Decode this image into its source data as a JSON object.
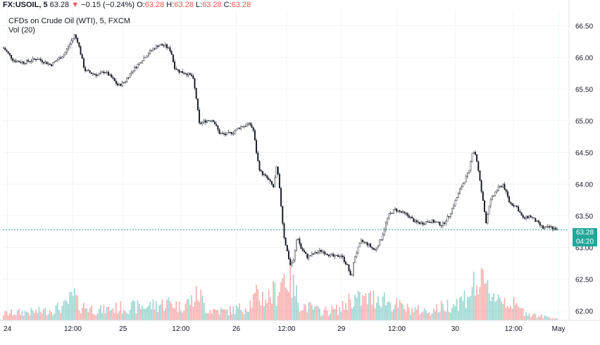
{
  "header": {
    "symbol": "FX:USOIL, 5",
    "price": "63.28",
    "change_icon": "triangle-down-icon",
    "change": "−0.15 (−0.24%)",
    "o_label": "O:",
    "o_value": "63.28",
    "h_label": "H:",
    "h_value": "63.28",
    "l_label": "L:",
    "l_value": "63.28",
    "c_label": "C:",
    "c_value": "63.28"
  },
  "legend": {
    "series_title": "CFDs on Crude Oil (WTI), 5, FXCM",
    "volume_title": "Vol (20)"
  },
  "price_badge": {
    "price": "63.28",
    "countdown": "04:20"
  },
  "colors": {
    "up": "#26a69a",
    "down": "#ef5350",
    "wick": "#131722",
    "grid": "#f0f3fa",
    "last_price_line": "#26a69a"
  },
  "chart_data": {
    "type": "candlestick",
    "x_ticks": [
      "24",
      "12:00",
      "25",
      "12:00",
      "26",
      "12:00",
      "29",
      "12:00",
      "30",
      "12:00",
      "May"
    ],
    "y_ticks": [
      "62.00",
      "62.50",
      "63.00",
      "63.50",
      "64.00",
      "64.50",
      "65.00",
      "65.50",
      "66.00",
      "66.50"
    ],
    "ylim": [
      61.85,
      66.75
    ],
    "last_price": 63.28,
    "price_path": [
      [
        0,
        66.15
      ],
      [
        1.5,
        65.95
      ],
      [
        3,
        65.92
      ],
      [
        5,
        65.98
      ],
      [
        7,
        65.88
      ],
      [
        9,
        66.05
      ],
      [
        10.5,
        66.35
      ],
      [
        11,
        66.25
      ],
      [
        12,
        65.8
      ],
      [
        13,
        65.75
      ],
      [
        14,
        65.72
      ],
      [
        15,
        65.78
      ],
      [
        16,
        65.68
      ],
      [
        17,
        65.55
      ],
      [
        18,
        65.62
      ],
      [
        19,
        65.78
      ],
      [
        20,
        65.9
      ],
      [
        21,
        66.02
      ],
      [
        22,
        66.12
      ],
      [
        23,
        66.2
      ],
      [
        24,
        66.18
      ],
      [
        24.8,
        66.1
      ],
      [
        25.3,
        65.85
      ],
      [
        26,
        65.78
      ],
      [
        27,
        65.75
      ],
      [
        28,
        65.7
      ],
      [
        28.5,
        65.4
      ],
      [
        29,
        64.95
      ],
      [
        30,
        65.0
      ],
      [
        31,
        65.02
      ],
      [
        32,
        64.8
      ],
      [
        33,
        64.78
      ],
      [
        34,
        64.82
      ],
      [
        35,
        64.9
      ],
      [
        36.5,
        64.95
      ],
      [
        37,
        64.85
      ],
      [
        37.6,
        64.4
      ],
      [
        38,
        64.2
      ],
      [
        39,
        64.1
      ],
      [
        40,
        63.95
      ],
      [
        40.5,
        64.3
      ],
      [
        41,
        63.8
      ],
      [
        41.5,
        63.2
      ],
      [
        42,
        62.95
      ],
      [
        42.5,
        62.72
      ],
      [
        43,
        62.8
      ],
      [
        43.5,
        63.2
      ],
      [
        44,
        63.0
      ],
      [
        45,
        62.85
      ],
      [
        46,
        62.9
      ],
      [
        47,
        62.95
      ],
      [
        48,
        62.9
      ],
      [
        49,
        62.85
      ],
      [
        50,
        62.88
      ],
      [
        51,
        62.7
      ],
      [
        51.5,
        62.5
      ],
      [
        52,
        62.85
      ],
      [
        53,
        63.1
      ],
      [
        54,
        63.05
      ],
      [
        55,
        62.95
      ],
      [
        56,
        63.15
      ],
      [
        57,
        63.5
      ],
      [
        58,
        63.6
      ],
      [
        59,
        63.55
      ],
      [
        60,
        63.5
      ],
      [
        61,
        63.4
      ],
      [
        62,
        63.38
      ],
      [
        63,
        63.42
      ],
      [
        64,
        63.4
      ],
      [
        65,
        63.35
      ],
      [
        66,
        63.5
      ],
      [
        67,
        63.75
      ],
      [
        68,
        64.0
      ],
      [
        69,
        64.2
      ],
      [
        69.5,
        64.55
      ],
      [
        70,
        64.45
      ],
      [
        70.5,
        64.1
      ],
      [
        71,
        63.75
      ],
      [
        71.5,
        63.4
      ],
      [
        72,
        63.7
      ],
      [
        73,
        63.9
      ],
      [
        74,
        64.0
      ],
      [
        75,
        63.7
      ],
      [
        76,
        63.65
      ],
      [
        76.5,
        63.55
      ],
      [
        77,
        63.45
      ],
      [
        78,
        63.5
      ],
      [
        79,
        63.4
      ],
      [
        80,
        63.3
      ],
      [
        81,
        63.32
      ],
      [
        82,
        63.28
      ]
    ],
    "volume_path": [
      [
        0,
        0.15
      ],
      [
        3,
        0.18
      ],
      [
        6,
        0.2
      ],
      [
        9,
        0.3
      ],
      [
        10.5,
        0.55
      ],
      [
        11,
        0.35
      ],
      [
        14,
        0.22
      ],
      [
        17,
        0.28
      ],
      [
        20,
        0.3
      ],
      [
        23,
        0.35
      ],
      [
        25,
        0.4
      ],
      [
        26,
        0.3
      ],
      [
        28,
        0.45
      ],
      [
        29,
        0.6
      ],
      [
        30,
        0.25
      ],
      [
        33,
        0.2
      ],
      [
        36,
        0.3
      ],
      [
        37.6,
        0.55
      ],
      [
        39,
        0.5
      ],
      [
        40.5,
        0.65
      ],
      [
        41.5,
        1.0
      ],
      [
        42.5,
        0.95
      ],
      [
        43,
        0.7
      ],
      [
        44,
        0.35
      ],
      [
        47,
        0.2
      ],
      [
        50,
        0.25
      ],
      [
        51.5,
        0.5
      ],
      [
        53,
        0.45
      ],
      [
        55,
        0.5
      ],
      [
        56,
        0.55
      ],
      [
        57,
        0.4
      ],
      [
        60,
        0.25
      ],
      [
        63,
        0.2
      ],
      [
        66,
        0.35
      ],
      [
        68,
        0.45
      ],
      [
        69.5,
        0.75
      ],
      [
        70.5,
        0.8
      ],
      [
        71.5,
        0.7
      ],
      [
        73,
        0.55
      ],
      [
        75,
        0.4
      ],
      [
        77,
        0.2
      ],
      [
        79,
        0.1
      ],
      [
        82,
        0.05
      ]
    ],
    "n_candles": 360,
    "x_span": 82
  }
}
